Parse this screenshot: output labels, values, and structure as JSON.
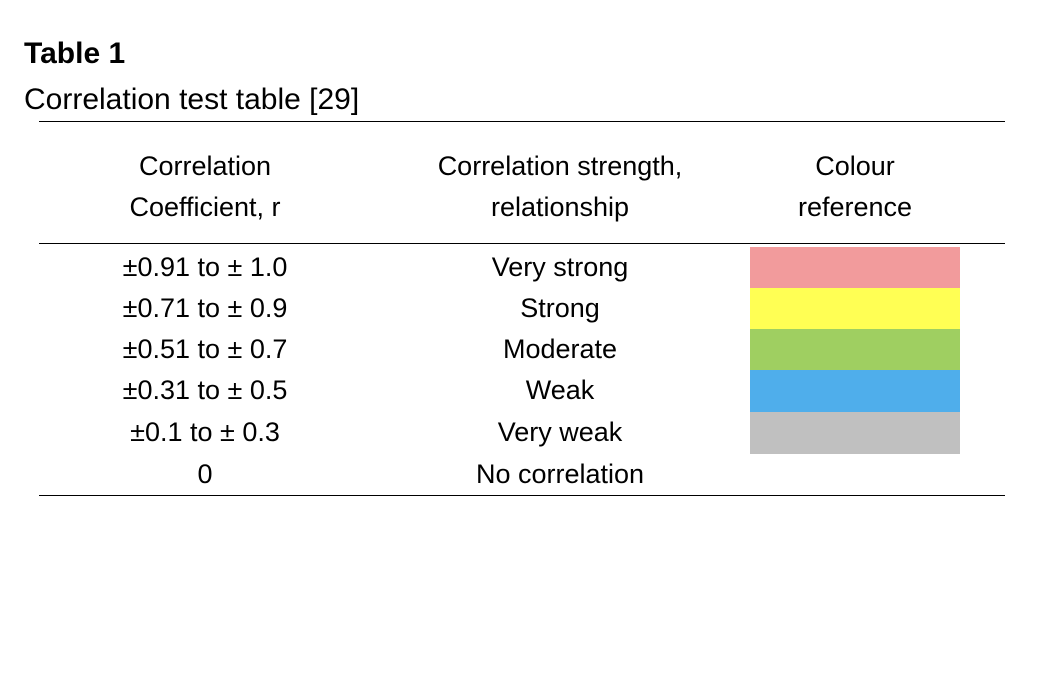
{
  "table": {
    "number": "Table 1",
    "caption": "Correlation test table [29]",
    "headers": [
      {
        "line1": "Correlation",
        "line2": "Coefficient, r"
      },
      {
        "line1": "Correlation strength,",
        "line2": "relationship"
      },
      {
        "line1": "Colour",
        "line2": "reference"
      }
    ],
    "rows": [
      {
        "coefficient": "±0.91 to ± 1.0",
        "strength": "Very strong",
        "color": "#F29B9C"
      },
      {
        "coefficient": "±0.71 to ± 0.9",
        "strength": "Strong",
        "color": "#FFFF54"
      },
      {
        "coefficient": "±0.51 to ± 0.7",
        "strength": "Moderate",
        "color": "#9FCF61"
      },
      {
        "coefficient": "±0.31 to ± 0.5",
        "strength": "Weak",
        "color": "#4FAEEB"
      },
      {
        "coefficient": "±0.1 to ± 0.3",
        "strength": "Very weak",
        "color": "#C0C0C0"
      },
      {
        "coefficient": "0",
        "strength": "No correlation",
        "color": ""
      }
    ]
  }
}
